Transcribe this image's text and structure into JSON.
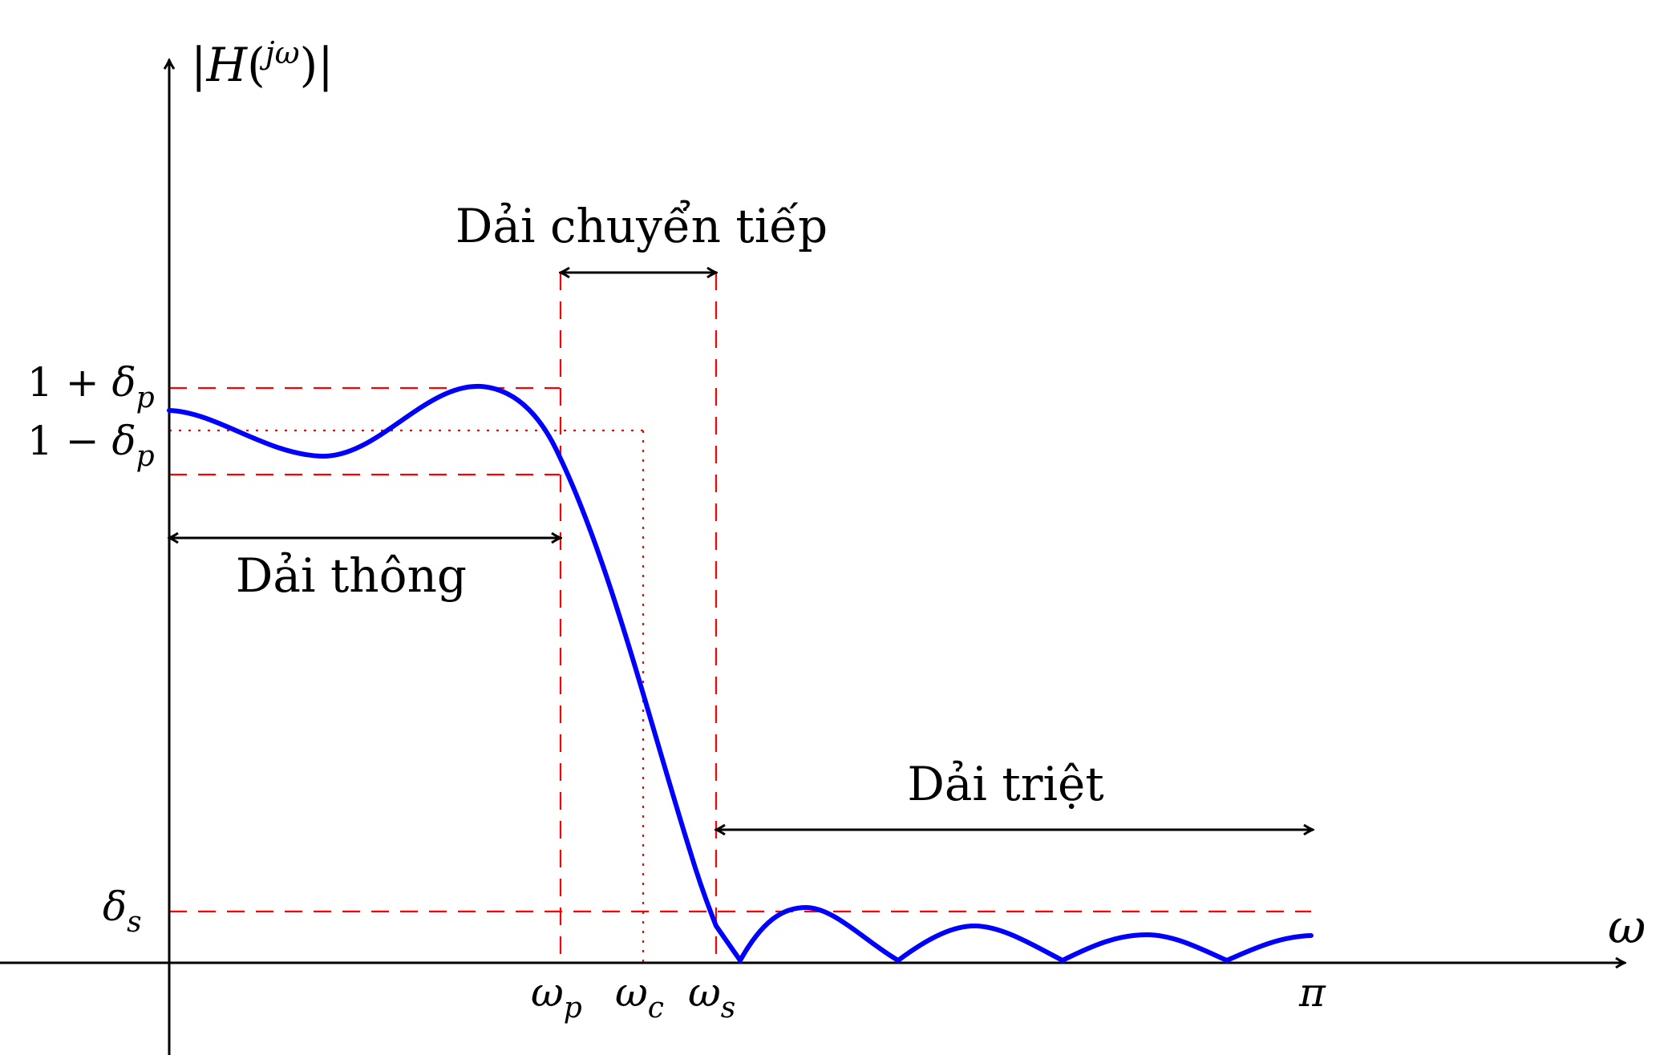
{
  "axes": {
    "y_label": {
      "prefix": "|",
      "main": "H",
      "open": "(",
      "sup": "jω",
      "close": ")|"
    },
    "x_label": "ω"
  },
  "y_ticks": {
    "upper": {
      "base": "1 + ",
      "sym": "δ",
      "sub": "p"
    },
    "lower": {
      "base": "1 − ",
      "sym": "δ",
      "sub": "p"
    },
    "stop": {
      "sym": "δ",
      "sub": "s"
    }
  },
  "x_ticks": {
    "wp": {
      "sym": "ω",
      "sub": "p"
    },
    "wc": {
      "sym": "ω",
      "sub": "c"
    },
    "ws": {
      "sym": "ω",
      "sub": "s"
    },
    "pi": "π"
  },
  "bands": {
    "transition": "Dải chuyển tiếp",
    "passband": "Dải thông",
    "stopband": "Dải triệt"
  },
  "colors": {
    "curve": "#0000ff",
    "guide": "#ff0000",
    "axis": "#000000"
  }
}
